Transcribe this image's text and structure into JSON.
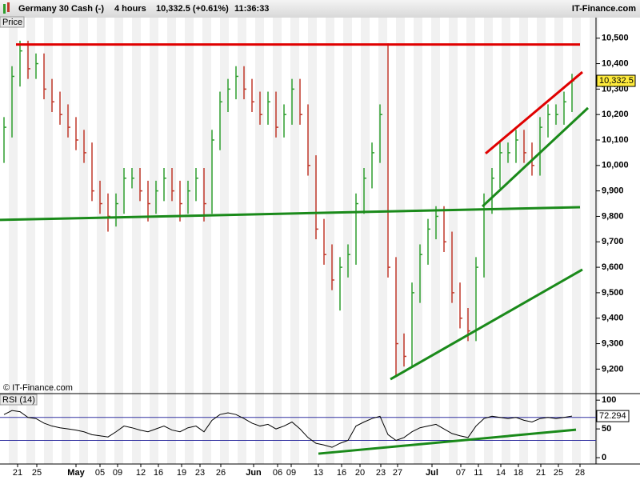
{
  "chart_data": {
    "type": "ohlc",
    "title": "Germany 30 Cash (-)",
    "timeframe": "4 hours",
    "quote": "10,332.5 (+0.61%)",
    "time": "11:36:33",
    "brand": "IT-Finance.com",
    "pane_label": "Price",
    "copyright": "© IT-Finance.com",
    "ylim": [
      9110,
      10540
    ],
    "yticks": [
      {
        "value": 9200,
        "label": "9,200"
      },
      {
        "value": 9300,
        "label": "9,300"
      },
      {
        "value": 9400,
        "label": "9,400"
      },
      {
        "value": 9500,
        "label": "9,500"
      },
      {
        "value": 9600,
        "label": "9,600"
      },
      {
        "value": 9700,
        "label": "9,700"
      },
      {
        "value": 9800,
        "label": "9,800"
      },
      {
        "value": 9900,
        "label": "9,900"
      },
      {
        "value": 10000,
        "label": "10,000"
      },
      {
        "value": 10100,
        "label": "10,100"
      },
      {
        "value": 10200,
        "label": "10,200"
      },
      {
        "value": 10300,
        "label": "10,300"
      },
      {
        "value": 10400,
        "label": "10,400"
      },
      {
        "value": 10500,
        "label": "10,500"
      }
    ],
    "xtick_labels": [
      "21",
      "25",
      "May",
      "05",
      "09",
      "12",
      "16",
      "19",
      "23",
      "26",
      "Jun",
      "06",
      "09",
      "13",
      "16",
      "20",
      "23",
      "27",
      "Jul",
      "07",
      "11",
      "14",
      "18",
      "21",
      "25",
      "28"
    ],
    "up_color": "#2e9e2e",
    "down_color": "#c0392b",
    "high": [
      10190,
      10390,
      10490,
      10490,
      10440,
      10440,
      10340,
      10290,
      10240,
      10190,
      10140,
      10090,
      9940,
      9890,
      9890,
      9990,
      9990,
      9990,
      9940,
      9940,
      9990,
      9990,
      9940,
      9940,
      9990,
      9990,
      10140,
      10290,
      10340,
      10390,
      10390,
      10340,
      10290,
      10290,
      10290,
      10240,
      10340,
      10340,
      10240,
      10040,
      9790,
      9690,
      9640,
      9690,
      9890,
      9990,
      10090,
      10240,
      10480,
      9640,
      9340,
      9540,
      9690,
      9790,
      9840,
      9840,
      9740,
      9540,
      9440,
      9640,
      9890,
      9990,
      10090,
      10090,
      10140,
      10140,
      10090,
      10190,
      10240,
      10240,
      10290,
      10360
    ],
    "low": [
      10010,
      10110,
      10310,
      10340,
      10340,
      10260,
      10210,
      10160,
      10110,
      10060,
      10010,
      9860,
      9810,
      9740,
      9760,
      9810,
      9910,
      9860,
      9780,
      9810,
      9860,
      9860,
      9780,
      9810,
      9860,
      9780,
      9810,
      10060,
      10210,
      10260,
      10260,
      10210,
      10160,
      10160,
      10110,
      10110,
      10160,
      10160,
      9960,
      9710,
      9610,
      9510,
      9430,
      9560,
      9610,
      9810,
      9910,
      10010,
      9560,
      9170,
      9210,
      9210,
      9460,
      9610,
      9710,
      9660,
      9460,
      9360,
      9310,
      9310,
      9560,
      9810,
      9910,
      10010,
      10010,
      10010,
      9960,
      9960,
      10110,
      10160,
      10160,
      10210
    ],
    "close": [
      10150,
      10350,
      10450,
      10380,
      10400,
      10300,
      10250,
      10200,
      10150,
      10100,
      10050,
      9900,
      9850,
      9800,
      9850,
      9950,
      9950,
      9900,
      9850,
      9900,
      9950,
      9900,
      9850,
      9900,
      9950,
      9850,
      10100,
      10250,
      10300,
      10350,
      10300,
      10250,
      10200,
      10250,
      10150,
      10200,
      10300,
      10200,
      10000,
      9750,
      9650,
      9550,
      9600,
      9650,
      9850,
      9950,
      10050,
      10200,
      9600,
      9300,
      9250,
      9500,
      9650,
      9750,
      9800,
      9700,
      9500,
      9400,
      9350,
      9600,
      9850,
      9950,
      10050,
      10050,
      10100,
      10050,
      10000,
      10150,
      10200,
      10200,
      10250,
      10332.5
    ],
    "last_label": "10,332.5",
    "trendlines": [
      {
        "color": "#e00000",
        "points": [
          [
            1.5,
            10475
          ],
          [
            72,
            10475
          ]
        ]
      },
      {
        "color": "#1a8a1a",
        "points": [
          [
            -0.5,
            9786
          ],
          [
            72,
            9836
          ]
        ]
      },
      {
        "color": "#e00000",
        "points": [
          [
            60.2,
            10047
          ],
          [
            72.3,
            10367
          ]
        ]
      },
      {
        "color": "#1a8a1a",
        "points": [
          [
            59.8,
            9839
          ],
          [
            73,
            10226
          ]
        ]
      },
      {
        "color": "#1a8a1a",
        "points": [
          [
            48.3,
            9160
          ],
          [
            72.3,
            9591
          ]
        ]
      }
    ],
    "rsi": {
      "label": "RSI (14)",
      "ylim": [
        -11,
        110
      ],
      "yticks": [
        0,
        50,
        100
      ],
      "bands": [
        30,
        70
      ],
      "color": "#000000",
      "values": [
        75,
        82,
        80,
        70,
        68,
        60,
        55,
        52,
        50,
        48,
        45,
        40,
        38,
        36,
        45,
        55,
        52,
        48,
        45,
        50,
        55,
        48,
        45,
        52,
        55,
        45,
        65,
        75,
        78,
        75,
        68,
        60,
        55,
        58,
        50,
        55,
        62,
        50,
        35,
        25,
        22,
        18,
        25,
        30,
        55,
        62,
        68,
        72,
        40,
        30,
        35,
        45,
        52,
        55,
        58,
        50,
        42,
        38,
        35,
        55,
        68,
        72,
        70,
        68,
        70,
        65,
        62,
        68,
        70,
        68,
        70,
        72.294
      ],
      "last_label": "72.294",
      "trendline": {
        "color": "#1a8a1a",
        "points": [
          [
            39.3,
            7
          ],
          [
            71.5,
            48.6
          ]
        ]
      }
    }
  }
}
